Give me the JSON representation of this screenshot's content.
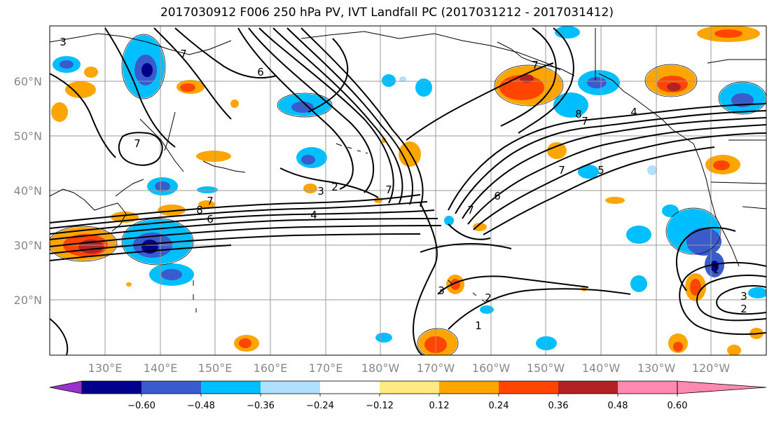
{
  "title": "2017030912 F006 250 hPa PV, IVT Landfall PC (2017031212 - 2017031412)",
  "lat_labels": [
    "60°N",
    "50°N",
    "40°N",
    "30°N",
    "20°N"
  ],
  "lon_labels": [
    "130°E",
    "140°E",
    "150°E",
    "160°E",
    "170°E",
    "180°W",
    "170°W",
    "160°W",
    "150°W",
    "140°W",
    "130°W",
    "120°W"
  ],
  "colorbar": {
    "colors": [
      "#9932cc",
      "#00008b",
      "#3a5bcc",
      "#00bfff",
      "#b0e2ff",
      "#ffffff",
      "#ffea85",
      "#ffa500",
      "#ff4500",
      "#b22222",
      "#ff89b0"
    ],
    "tick_labels": [
      "−0.60",
      "−0.48",
      "−0.36",
      "−0.24",
      "−0.12",
      "0.12",
      "0.24",
      "0.36",
      "0.48",
      "0.60"
    ]
  },
  "contour_labels": [
    "3",
    "7",
    "6",
    "7",
    "8",
    "7",
    "6",
    "4",
    "3",
    "2",
    "7",
    "7",
    "6",
    "5",
    "7",
    "8",
    "7",
    "4",
    "2",
    "1",
    "3",
    "3",
    "2",
    "1",
    "7"
  ]
}
